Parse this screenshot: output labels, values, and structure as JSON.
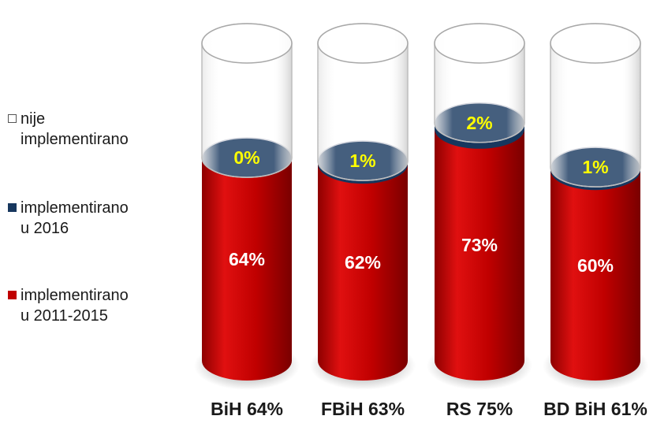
{
  "chart_data": {
    "type": "bar",
    "categories": [
      "BiH 64%",
      "FBiH 63%",
      "RS 75%",
      "BD BiH 61%"
    ],
    "series": [
      {
        "name": "implementirano\nu 2011-2015",
        "values": [
          64,
          62,
          73,
          60
        ],
        "labels": [
          "64%",
          "62%",
          "73%",
          "60%"
        ],
        "color": "#c00000",
        "label_color": "#ffffff"
      },
      {
        "name": "implementirano\nu 2016",
        "values": [
          0,
          1,
          2,
          1
        ],
        "labels": [
          "0%",
          "1%",
          "2%",
          "1%"
        ],
        "color": "#17375e",
        "label_color": "#ffff00"
      },
      {
        "name": "nije\nimplementirano",
        "values": [
          36,
          37,
          25,
          39
        ],
        "color": "#ffffff"
      }
    ],
    "stacked": true,
    "ylim": [
      0,
      100
    ],
    "grid": false,
    "legend_position": "left"
  }
}
